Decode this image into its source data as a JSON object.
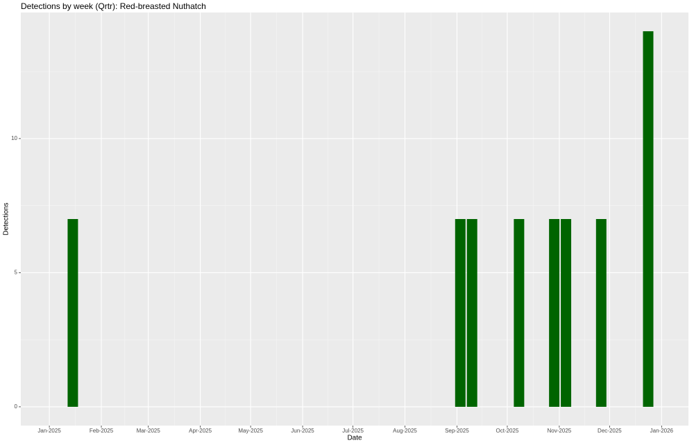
{
  "chart_data": {
    "type": "bar",
    "title": "Detections by week (Qrtr): Red-breasted Nuthatch",
    "x_label": "Date",
    "y_label": "Detections",
    "x": [
      "2025-01-15",
      "2025-09-03",
      "2025-09-10",
      "2025-10-08",
      "2025-10-29",
      "2025-11-05",
      "2025-11-26",
      "2025-12-24"
    ],
    "values": [
      7,
      7,
      7,
      7,
      7,
      7,
      7,
      14
    ],
    "color": "#006400",
    "xlim": [
      "2024-12-15",
      "2026-01-17"
    ],
    "xticks": [
      {
        "value": "2025-01-01",
        "label": "Jan-2025"
      },
      {
        "value": "2025-02-01",
        "label": "Feb-2025"
      },
      {
        "value": "2025-03-01",
        "label": "Mar-2025"
      },
      {
        "value": "2025-04-01",
        "label": "Apr-2025"
      },
      {
        "value": "2025-05-01",
        "label": "May-2025"
      },
      {
        "value": "2025-06-01",
        "label": "Jun-2025"
      },
      {
        "value": "2025-07-01",
        "label": "Jul-2025"
      },
      {
        "value": "2025-08-01",
        "label": "Aug-2025"
      },
      {
        "value": "2025-09-01",
        "label": "Sep-2025"
      },
      {
        "value": "2025-10-01",
        "label": "Oct-2025"
      },
      {
        "value": "2025-11-01",
        "label": "Nov-2025"
      },
      {
        "value": "2025-12-01",
        "label": "Dec-2025"
      },
      {
        "value": "2026-01-01",
        "label": "Jan-2026"
      }
    ],
    "ylim": [
      -0.7,
      14.7
    ],
    "yticks": [
      0,
      5,
      10
    ],
    "grid": true
  }
}
